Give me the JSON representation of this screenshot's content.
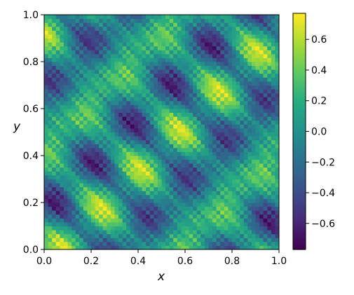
{
  "chart_data": {
    "type": "heatmap",
    "title": "",
    "xlabel": "x",
    "ylabel": "y",
    "xlim": [
      0.0,
      1.0
    ],
    "ylim": [
      0.0,
      1.0
    ],
    "x_ticks": [
      "0.0",
      "0.2",
      "0.4",
      "0.6",
      "0.8",
      "1.0"
    ],
    "y_ticks": [
      "0.0",
      "0.2",
      "0.4",
      "0.6",
      "0.8",
      "1.0"
    ],
    "colorbar": {
      "colormap": "viridis",
      "range": [
        -0.77,
        0.77
      ],
      "ticks": [
        -0.6,
        -0.4,
        -0.2,
        0.0,
        0.2,
        0.4,
        0.6
      ],
      "tick_labels": [
        "−0.6",
        "−0.4",
        "−0.2",
        "0.0",
        "0.2",
        "0.4",
        "0.6"
      ]
    },
    "field": {
      "description_of_pattern": "diagonal stripes with fine checkerboard texture",
      "grid_resolution": 60,
      "max_value": 0.77,
      "min_value": -0.77
    },
    "grid": false,
    "legend": "none"
  },
  "colors": {
    "viridis_low": "#440154",
    "viridis_mid": "#21918c",
    "viridis_high": "#fde725"
  }
}
